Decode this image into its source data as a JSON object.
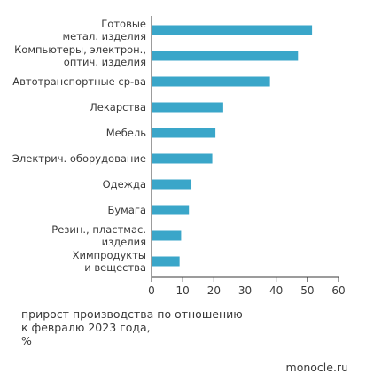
{
  "chart_data": {
    "type": "bar",
    "orientation": "horizontal",
    "categories": [
      [
        "Готовые",
        "метал. изделия"
      ],
      [
        "Компьютеры, электрон.,",
        "оптич. изделия"
      ],
      [
        "Автотранспортные ср-ва"
      ],
      [
        "Лекарства"
      ],
      [
        "Мебель"
      ],
      [
        "Электрич. оборудование"
      ],
      [
        "Одежда"
      ],
      [
        "Бумага"
      ],
      [
        "Резин., пластмас.",
        "изделия"
      ],
      [
        "Химпродукты",
        "и вещества"
      ]
    ],
    "values": [
      51.5,
      47,
      38,
      23,
      20.5,
      19.5,
      12.8,
      12,
      9.5,
      9
    ],
    "xlim": [
      0,
      60
    ],
    "xticks": [
      0,
      10,
      20,
      30,
      40,
      50,
      60
    ],
    "bar_color": "#3aa6c9",
    "axis_color": "#3a3a3a"
  },
  "caption": {
    "lines": [
      "прирост производства по отношению",
      "к февралю 2023 года,",
      "%"
    ]
  },
  "source": "monocle.ru"
}
